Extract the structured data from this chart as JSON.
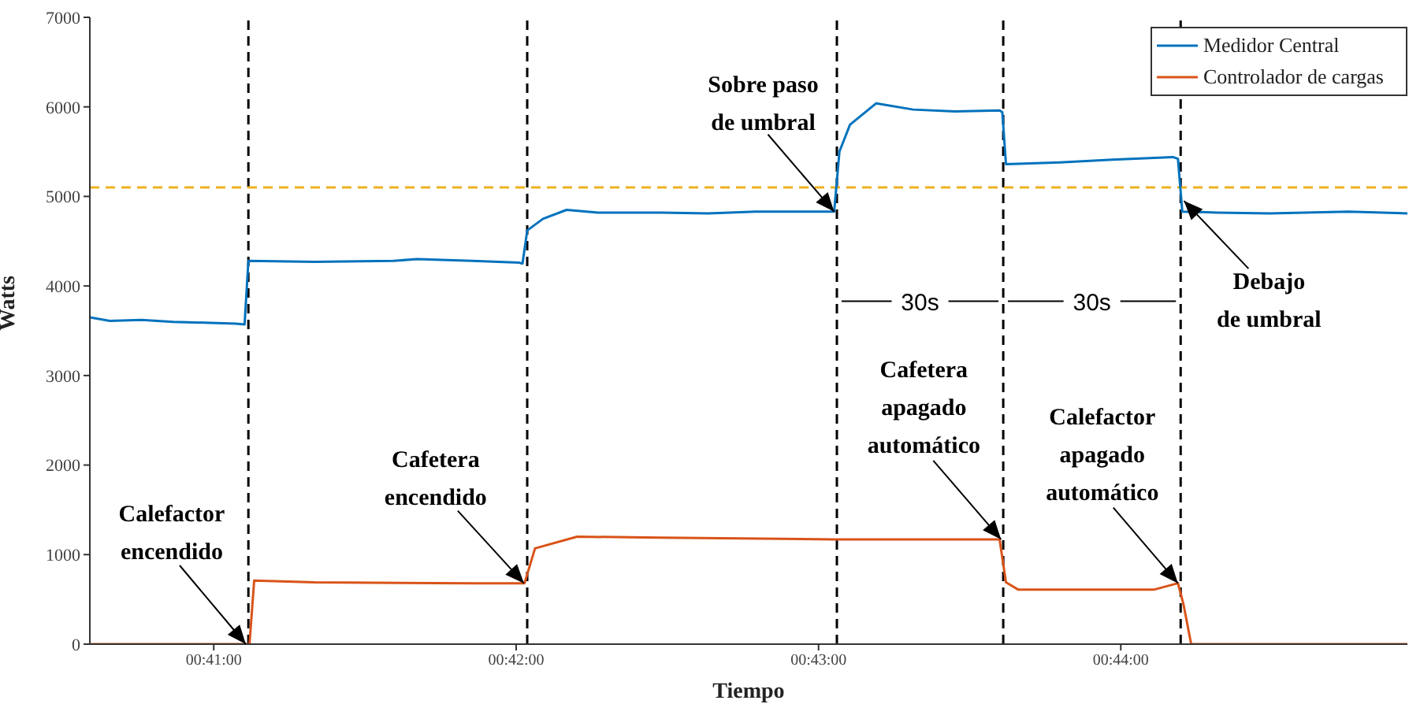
{
  "chart_data": {
    "type": "line",
    "xlabel": "Tiempo",
    "ylabel": "Watts",
    "xlim": [
      0.6765,
      0.74913
    ],
    "xticks": [
      {
        "value": 0.68333,
        "label": "00:41:00"
      },
      {
        "value": 0.7,
        "label": "00:42:00"
      },
      {
        "value": 0.71667,
        "label": "00:43:00"
      },
      {
        "value": 0.73333,
        "label": "00:44:00"
      }
    ],
    "ylim": [
      0,
      7000
    ],
    "yticks": [
      0,
      1000,
      2000,
      3000,
      4000,
      5000,
      6000,
      7000
    ],
    "grid": false,
    "legend": "top right",
    "marker": "none",
    "line_style": "solid",
    "series": [
      {
        "name": "Medidor Central",
        "color": "#0072bd",
        "x": [
          0.6765,
          0.6776,
          0.67934,
          0.68108,
          0.68281,
          0.68455,
          0.68503,
          0.68524,
          0.68889,
          0.69323,
          0.69453,
          0.69757,
          0.70017,
          0.70035,
          0.70061,
          0.70148,
          0.70278,
          0.70451,
          0.70799,
          0.71059,
          0.71319,
          0.71753,
          0.71782,
          0.7184,
          0.71985,
          0.72188,
          0.72419,
          0.72665,
          0.7268,
          0.727,
          0.72997,
          0.73287,
          0.7362,
          0.73648,
          0.73672,
          0.73863,
          0.74155,
          0.74589,
          0.74913
        ],
        "values": [
          3650,
          3610,
          3620,
          3600,
          3590,
          3580,
          3570,
          4280,
          4270,
          4280,
          4300,
          4280,
          4260,
          4250,
          4620,
          4750,
          4850,
          4820,
          4820,
          4810,
          4830,
          4830,
          5500,
          5800,
          6040,
          5970,
          5950,
          5960,
          5940,
          5360,
          5380,
          5410,
          5440,
          5420,
          4830,
          4820,
          4810,
          4830,
          4810
        ]
      },
      {
        "name": "Controlador de cargas",
        "color": "#d95319",
        "x": [
          0.6765,
          0.6853,
          0.68556,
          0.68889,
          0.69757,
          0.70046,
          0.70104,
          0.70336,
          0.70799,
          0.71753,
          0.72665,
          0.727,
          0.72767,
          0.73518,
          0.73648,
          0.73678,
          0.73721,
          0.74913
        ],
        "values": [
          0,
          0,
          710,
          690,
          680,
          680,
          1070,
          1200,
          1190,
          1170,
          1170,
          690,
          610,
          610,
          680,
          450,
          0,
          0
        ]
      }
    ],
    "ref_lines": [
      {
        "axis": "x",
        "value": 0.68524,
        "color": "#000000",
        "line_style": "dashed"
      },
      {
        "axis": "x",
        "value": 0.70061,
        "color": "#000000",
        "line_style": "dashed"
      },
      {
        "axis": "x",
        "value": 0.71768,
        "color": "#000000",
        "line_style": "dashed"
      },
      {
        "axis": "x",
        "value": 0.72685,
        "color": "#000000",
        "line_style": "dashed"
      },
      {
        "axis": "x",
        "value": 0.73663,
        "color": "#000000",
        "line_style": "dashed"
      },
      {
        "axis": "y",
        "value": 5100,
        "color": "#edb120",
        "line_style": "dashed"
      }
    ],
    "annotations": [
      {
        "text": "Calefactor\nencendido",
        "x": 0.6851,
        "y": 0
      },
      {
        "text": "Cafetera\nencendido",
        "x": 0.70043,
        "y": 680
      },
      {
        "text": "Sobre paso\nde umbral",
        "x": 0.71753,
        "y": 4830
      },
      {
        "text": "Cafetera\napagado\nautomático",
        "x": 0.72673,
        "y": 1170
      },
      {
        "text": "Calefactor\napagado\nautomático",
        "x": 0.73648,
        "y": 680
      },
      {
        "text": "Debajo\nde umbral",
        "x": 0.73681,
        "y": 4950
      },
      {
        "text": "30s",
        "x": 0.71768,
        "y": 3830
      },
      {
        "text": "30s",
        "x": 0.72685,
        "y": 3830
      }
    ]
  }
}
